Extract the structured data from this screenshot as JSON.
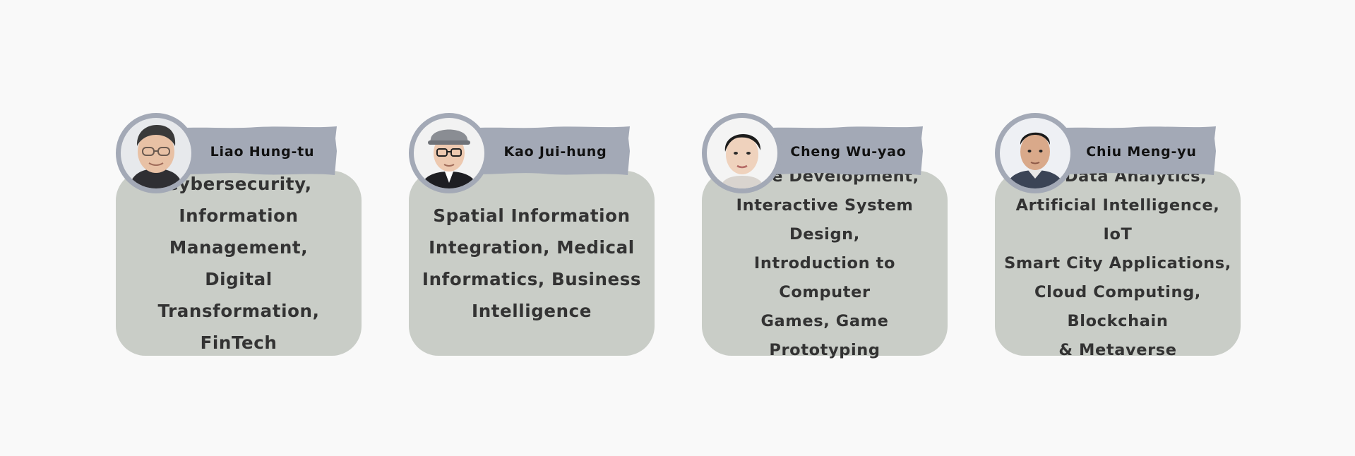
{
  "colors": {
    "page_background": "#f9f9f9",
    "card_background": "#c9cdc7",
    "banner": "#a3a9b6",
    "avatar_ring": "#a3a9b6"
  },
  "cards": [
    {
      "name": "Liao Hung-tu",
      "avatar_icon": "person-portrait-icon",
      "description": "Cybersecurity,\nInformation Management,\nDigital Transformation,\nFinTech"
    },
    {
      "name": "Kao Jui-hung",
      "avatar_icon": "person-portrait-icon",
      "description": "Spatial Information\nIntegration, Medical\nInformatics, Business\nIntelligence"
    },
    {
      "name": "Cheng Wu-yao",
      "avatar_icon": "person-portrait-icon",
      "description": "Game Development,\nInteractive System Design,\nIntroduction to Computer\nGames, Game Prototyping"
    },
    {
      "name": "Chiu Meng-yu",
      "avatar_icon": "person-portrait-icon",
      "description": "Big Data Analytics,\nArtificial Intelligence, IoT\nSmart City Applications,\nCloud Computing, Blockchain\n& Metaverse"
    }
  ]
}
